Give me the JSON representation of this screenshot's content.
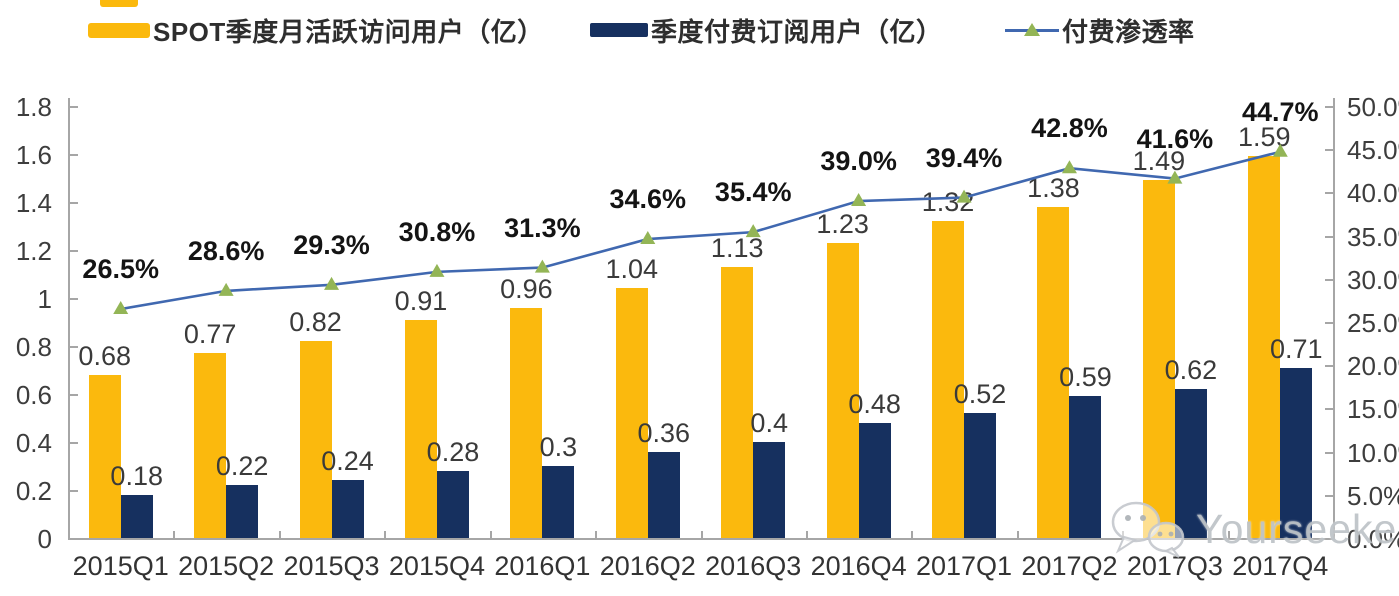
{
  "legend": {
    "items": [
      {
        "label": "SPOT季度月活跃访问用户（亿）",
        "swatch": "yellow-bar-swatch"
      },
      {
        "label": "季度付费订阅用户（亿）",
        "swatch": "navy-bar-swatch"
      },
      {
        "label": "付费渗透率",
        "swatch": "line-marker-swatch"
      }
    ]
  },
  "chart_data": {
    "type": "bar",
    "subtype": "grouped bars with overlay line, dual y-axes",
    "title": "",
    "categories": [
      "2015Q1",
      "2015Q2",
      "2015Q3",
      "2015Q4",
      "2016Q1",
      "2016Q2",
      "2016Q3",
      "2016Q4",
      "2017Q1",
      "2017Q2",
      "2017Q3",
      "2017Q4"
    ],
    "series": [
      {
        "name": "SPOT季度月活跃访问用户（亿）",
        "type": "bar",
        "axis": "left",
        "color": "#FBB90D",
        "values": [
          0.68,
          0.77,
          0.82,
          0.91,
          0.96,
          1.04,
          1.13,
          1.23,
          1.32,
          1.38,
          1.49,
          1.59
        ],
        "labels": [
          "0.68",
          "0.77",
          "0.82",
          "0.91",
          "0.96",
          "1.04",
          "1.13",
          "1.23",
          "1.32",
          "1.38",
          "1.49",
          "1.59"
        ]
      },
      {
        "name": "季度付费订阅用户（亿）",
        "type": "bar",
        "axis": "left",
        "color": "#16305F",
        "values": [
          0.18,
          0.22,
          0.24,
          0.28,
          0.3,
          0.36,
          0.4,
          0.48,
          0.52,
          0.59,
          0.62,
          0.71
        ],
        "labels": [
          "0.18",
          "0.22",
          "0.24",
          "0.28",
          "0.3",
          "0.36",
          "0.4",
          "0.48",
          "0.52",
          "0.59",
          "0.62",
          "0.71"
        ]
      },
      {
        "name": "付费渗透率",
        "type": "line",
        "axis": "right",
        "color": "#4068B0",
        "marker": "triangle",
        "marker_color": "#93B556",
        "values": [
          26.5,
          28.6,
          29.3,
          30.8,
          31.3,
          34.6,
          35.4,
          39.0,
          39.4,
          42.8,
          41.6,
          44.7
        ],
        "labels": [
          "26.5%",
          "28.6%",
          "29.3%",
          "30.8%",
          "31.3%",
          "34.6%",
          "35.4%",
          "39.0%",
          "39.4%",
          "42.8%",
          "41.6%",
          "44.7%"
        ]
      }
    ],
    "left_axis": {
      "min": 0,
      "max": 1.8,
      "step": 0.2,
      "tick_labels": [
        "1.8",
        "1.6",
        "1.4",
        "1.2",
        "1",
        "0.8",
        "0.6",
        "0.4",
        "0.2",
        "0"
      ]
    },
    "right_axis": {
      "min": 0,
      "max": 50,
      "step": 5,
      "tick_labels": [
        "50.0%",
        "45.0%",
        "40.0%",
        "35.0%",
        "30.0%",
        "25.0%",
        "20.0%",
        "15.0%",
        "10.0%",
        "5.0%",
        "0.0%"
      ]
    },
    "grid": false,
    "legend_position": "top"
  },
  "watermark": {
    "icon": "wechat-icon",
    "text": "Yourseeker"
  }
}
